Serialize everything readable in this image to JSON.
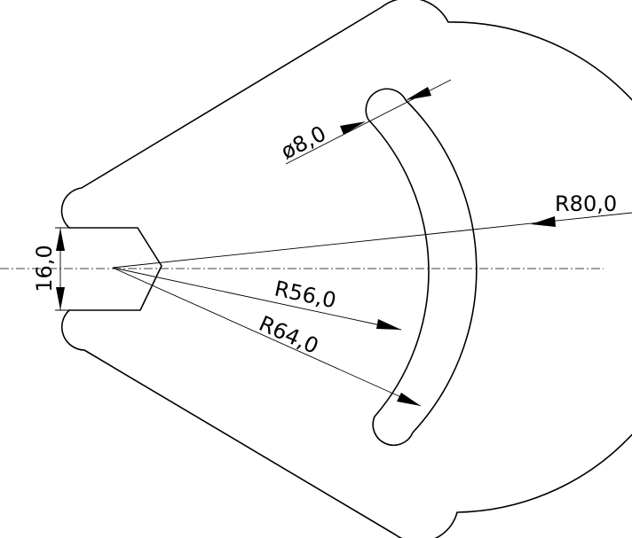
{
  "drawing": {
    "dimensions": {
      "slot_width": "ø8,0",
      "outer_radius": "R80,0",
      "slot_inner_radius": "R56,0",
      "slot_outer_radius": "R64,0",
      "flat_height": "16,0"
    }
  }
}
